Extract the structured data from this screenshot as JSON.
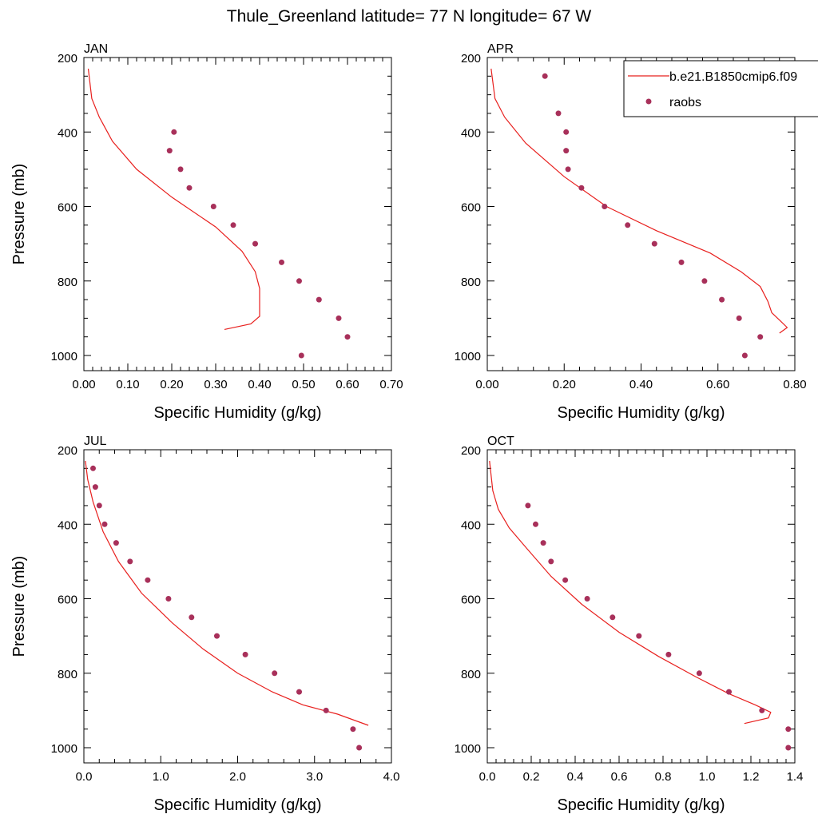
{
  "figure": {
    "title": "Thule_Greenland  latitude= 77 N longitude= 67 W"
  },
  "legend": {
    "model_label": "b.e21.B1850cmip6.f09",
    "obs_label": "raobs",
    "placement": "top-right of APR panel",
    "model_color": "#e8201e",
    "obs_color": "#a8305a"
  },
  "chart_data": [
    {
      "type": "line",
      "panel": "JAN",
      "title": "JAN",
      "xlabel": "Specific Humidity (g/kg)",
      "ylabel": "Pressure (mb)",
      "xlim": [
        0,
        0.7
      ],
      "ylim": [
        1000,
        200
      ],
      "y_reversed": true,
      "xticks": [
        "0.00",
        "0.10",
        "0.20",
        "0.30",
        "0.40",
        "0.50",
        "0.60",
        "0.70"
      ],
      "yticks": [
        "200",
        "400",
        "600",
        "800",
        "1000"
      ],
      "grid": false,
      "series": [
        {
          "name": "b.e21.B1850cmip6.f09",
          "style": "line",
          "x": [
            0.32,
            0.38,
            0.4,
            0.4,
            0.4,
            0.39,
            0.36,
            0.3,
            0.2,
            0.12,
            0.065,
            0.035,
            0.018,
            0.01
          ],
          "y": [
            930,
            915,
            895,
            860,
            820,
            775,
            720,
            655,
            575,
            500,
            425,
            360,
            310,
            230
          ]
        },
        {
          "name": "raobs",
          "style": "markers",
          "x": [
            0.205,
            0.195,
            0.22,
            0.24,
            0.295,
            0.34,
            0.39,
            0.45,
            0.49,
            0.535,
            0.58,
            0.6,
            0.495
          ],
          "y": [
            400,
            450,
            500,
            550,
            600,
            650,
            700,
            750,
            800,
            850,
            900,
            950,
            1000
          ]
        }
      ]
    },
    {
      "type": "line",
      "panel": "APR",
      "title": "APR",
      "xlabel": "Specific Humidity (g/kg)",
      "ylabel": "",
      "xlim": [
        0,
        0.8
      ],
      "ylim": [
        1000,
        200
      ],
      "y_reversed": true,
      "xticks": [
        "0.00",
        "0.20",
        "0.40",
        "0.60",
        "0.80"
      ],
      "yticks": [
        "200",
        "400",
        "600",
        "800",
        "1000"
      ],
      "grid": false,
      "series": [
        {
          "name": "b.e21.B1850cmip6.f09",
          "style": "line",
          "x": [
            0.76,
            0.78,
            0.76,
            0.74,
            0.73,
            0.71,
            0.66,
            0.58,
            0.44,
            0.31,
            0.2,
            0.1,
            0.045,
            0.02,
            0.01
          ],
          "y": [
            940,
            925,
            905,
            885,
            855,
            815,
            775,
            725,
            665,
            600,
            520,
            430,
            360,
            310,
            230
          ]
        },
        {
          "name": "raobs",
          "style": "markers",
          "x": [
            0.15,
            0.185,
            0.205,
            0.205,
            0.21,
            0.245,
            0.305,
            0.365,
            0.435,
            0.505,
            0.565,
            0.61,
            0.655,
            0.71,
            0.67
          ],
          "y": [
            250,
            350,
            400,
            450,
            500,
            550,
            600,
            650,
            700,
            750,
            800,
            850,
            900,
            950,
            1000
          ]
        }
      ]
    },
    {
      "type": "line",
      "panel": "JUL",
      "title": "JUL",
      "xlabel": "Specific Humidity (g/kg)",
      "ylabel": "Pressure (mb)",
      "xlim": [
        0,
        4.0
      ],
      "ylim": [
        1000,
        200
      ],
      "y_reversed": true,
      "xticks": [
        "0.0",
        "1.0",
        "2.0",
        "3.0",
        "4.0"
      ],
      "yticks": [
        "200",
        "400",
        "600",
        "800",
        "1000"
      ],
      "grid": false,
      "series": [
        {
          "name": "b.e21.B1850cmip6.f09",
          "style": "line",
          "x": [
            3.7,
            3.3,
            2.85,
            2.45,
            2.0,
            1.55,
            1.15,
            0.75,
            0.45,
            0.25,
            0.12,
            0.05,
            0.02
          ],
          "y": [
            940,
            910,
            885,
            850,
            800,
            735,
            665,
            585,
            500,
            420,
            340,
            280,
            230
          ]
        },
        {
          "name": "raobs",
          "style": "markers",
          "x": [
            0.12,
            0.15,
            0.2,
            0.27,
            0.42,
            0.6,
            0.83,
            1.1,
            1.4,
            1.73,
            2.1,
            2.48,
            2.8,
            3.15,
            3.5,
            3.58
          ],
          "y": [
            250,
            300,
            350,
            400,
            450,
            500,
            550,
            600,
            650,
            700,
            750,
            800,
            850,
            900,
            950,
            1000
          ]
        }
      ]
    },
    {
      "type": "line",
      "panel": "OCT",
      "title": "OCT",
      "xlabel": "Specific Humidity (g/kg)",
      "ylabel": "",
      "xlim": [
        0,
        1.4
      ],
      "ylim": [
        1000,
        200
      ],
      "y_reversed": true,
      "xticks": [
        "0.0",
        "0.2",
        "0.4",
        "0.6",
        "0.8",
        "1.0",
        "1.2",
        "1.4"
      ],
      "yticks": [
        "200",
        "400",
        "600",
        "800",
        "1000"
      ],
      "grid": false,
      "series": [
        {
          "name": "b.e21.B1850cmip6.f09",
          "style": "line",
          "x": [
            1.17,
            1.28,
            1.29,
            1.22,
            1.1,
            0.95,
            0.78,
            0.6,
            0.43,
            0.29,
            0.18,
            0.1,
            0.05,
            0.025,
            0.01
          ],
          "y": [
            935,
            920,
            905,
            885,
            855,
            810,
            755,
            690,
            615,
            540,
            465,
            410,
            360,
            310,
            230
          ]
        },
        {
          "name": "raobs",
          "style": "markers",
          "x": [
            0.185,
            0.22,
            0.255,
            0.29,
            0.355,
            0.455,
            0.57,
            0.69,
            0.825,
            0.965,
            1.1,
            1.25,
            1.37,
            1.37
          ],
          "y": [
            350,
            400,
            450,
            500,
            550,
            600,
            650,
            700,
            750,
            800,
            850,
            900,
            950,
            1000
          ]
        }
      ]
    }
  ]
}
